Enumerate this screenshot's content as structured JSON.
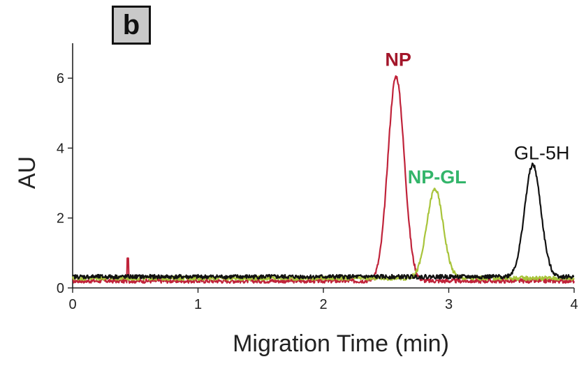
{
  "panel_label": "b",
  "chart_data": {
    "type": "line",
    "title": "",
    "xlabel": "Migration Time (min)",
    "ylabel": "AU",
    "xlim": [
      0,
      4
    ],
    "ylim": [
      0,
      7
    ],
    "xticks": [
      0,
      1,
      2,
      3,
      4
    ],
    "yticks": [
      0,
      2,
      4,
      6
    ],
    "grid": false,
    "legend": "none",
    "series": [
      {
        "name": "NP",
        "color": "#c0233a",
        "label_color": "#a3162a",
        "baseline": 0.2,
        "peaks": [
          {
            "center": 2.58,
            "height": 5.85,
            "sigma": 0.065
          }
        ],
        "spikes": [
          {
            "x": 0.44,
            "height": 0.65
          }
        ]
      },
      {
        "name": "NP-GL",
        "color": "#a8c43a",
        "label_color": "#33b56a",
        "baseline": 0.28,
        "peaks": [
          {
            "center": 2.89,
            "height": 2.55,
            "sigma": 0.065
          }
        ],
        "spikes": []
      },
      {
        "name": "GL-5H",
        "color": "#111111",
        "label_color": "#111111",
        "baseline": 0.32,
        "peaks": [
          {
            "center": 3.67,
            "height": 3.2,
            "sigma": 0.065
          }
        ],
        "spikes": []
      }
    ]
  }
}
